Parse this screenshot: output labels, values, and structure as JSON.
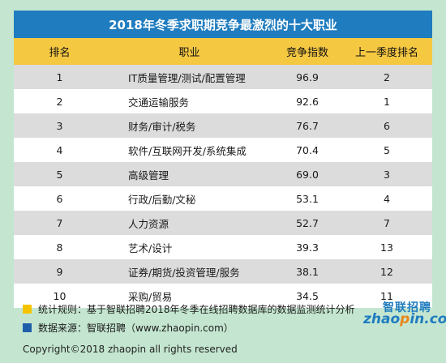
{
  "title": "2018年冬季求职期竞争最激烈的十大职业",
  "headers": {
    "rank": "排名",
    "job": "职业",
    "score": "竞争指数",
    "prev": "上一季度排名"
  },
  "rows": [
    {
      "rank": "1",
      "job": "IT质量管理/测试/配置管理",
      "score": "96.9",
      "prev": "2"
    },
    {
      "rank": "2",
      "job": "交通运输服务",
      "score": "92.6",
      "prev": "1"
    },
    {
      "rank": "3",
      "job": "财务/审计/税务",
      "score": "76.7",
      "prev": "6"
    },
    {
      "rank": "4",
      "job": "软件/互联网开发/系统集成",
      "score": "70.4",
      "prev": "5"
    },
    {
      "rank": "5",
      "job": "高级管理",
      "score": "69.0",
      "prev": "3"
    },
    {
      "rank": "6",
      "job": "行政/后勤/文秘",
      "score": "53.1",
      "prev": "4"
    },
    {
      "rank": "7",
      "job": "人力资源",
      "score": "52.7",
      "prev": "7"
    },
    {
      "rank": "8",
      "job": "艺术/设计",
      "score": "39.3",
      "prev": "13"
    },
    {
      "rank": "9",
      "job": "证券/期货/投资管理/服务",
      "score": "38.1",
      "prev": "12"
    },
    {
      "rank": "10",
      "job": "采购/贸易",
      "score": "34.5",
      "prev": "11"
    }
  ],
  "notes": {
    "rule": "统计规则：基于智联招聘2018年冬季在线招聘数据库的数据监测统计分析",
    "source": "数据来源：智联招聘（www.zhaopin.com）"
  },
  "copyright": "Copyright©2018 zhaopin all rights reserved",
  "logo": {
    "cn": "智联招聘",
    "en_a": "zhao",
    "en_dot": "p",
    "en_b": "in.com"
  },
  "colors": {
    "title_bg": "#1f7cbf",
    "header_bg": "#f5c842",
    "page_bg": "#c4e6d0",
    "row_gray": "#dcdcdc"
  }
}
